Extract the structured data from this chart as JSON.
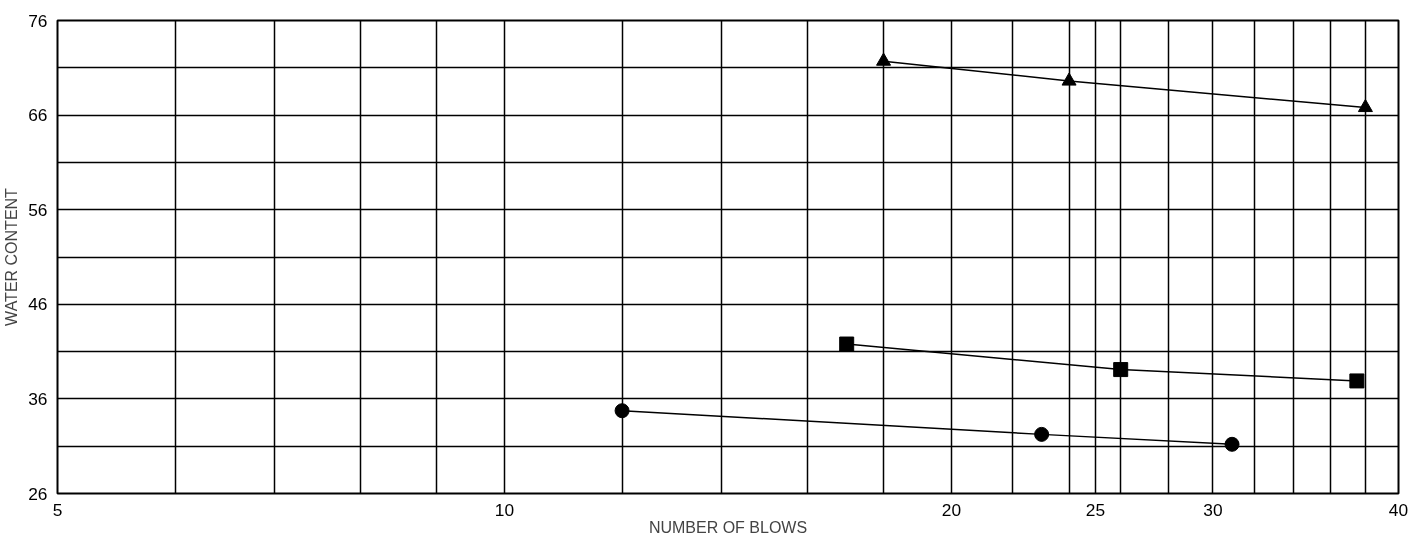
{
  "chart_data": {
    "type": "line",
    "xlabel": "NUMBER OF BLOWS",
    "ylabel": "WATER CONTENT",
    "log": "x",
    "xlim": [
      5,
      40
    ],
    "ylim": [
      26,
      76
    ],
    "xticks": [
      5,
      {
        "value": 6,
        "label": null
      },
      {
        "value": 7,
        "label": null
      },
      {
        "value": 8,
        "label": null
      },
      {
        "value": 9,
        "label": null
      },
      10,
      {
        "value": 12,
        "label": null
      },
      {
        "value": 14,
        "label": null
      },
      {
        "value": 16,
        "label": null
      },
      {
        "value": 18,
        "label": null
      },
      20,
      {
        "value": 22,
        "label": null
      },
      {
        "value": 24,
        "label": null
      },
      25,
      {
        "value": 26,
        "label": null
      },
      {
        "value": 28,
        "label": null
      },
      30,
      {
        "value": 32,
        "label": null
      },
      {
        "value": 34,
        "label": null
      },
      {
        "value": 36,
        "label": null
      },
      {
        "value": 38,
        "label": null
      },
      40
    ],
    "yticks": [
      26,
      {
        "value": 31,
        "label": null
      },
      36,
      {
        "value": 41,
        "label": null
      },
      46,
      {
        "value": 51,
        "label": null
      },
      56,
      {
        "value": 61,
        "label": null
      },
      66,
      {
        "value": 71,
        "label": null
      },
      76
    ],
    "grid": true,
    "line_style": "solid",
    "series": [
      {
        "color": "#000000",
        "marker": "triangle",
        "x": [
          18,
          24,
          38
        ],
        "values": [
          71.7,
          69.6,
          66.8
        ]
      },
      {
        "color": "#000000",
        "marker": "square",
        "x": [
          17,
          26,
          37.5
        ],
        "values": [
          41.8,
          39.1,
          37.9
        ]
      },
      {
        "color": "#000000",
        "marker": "circle",
        "x": [
          12,
          23,
          30.9
        ],
        "values": [
          34.75,
          32.25,
          31.2
        ]
      }
    ]
  }
}
